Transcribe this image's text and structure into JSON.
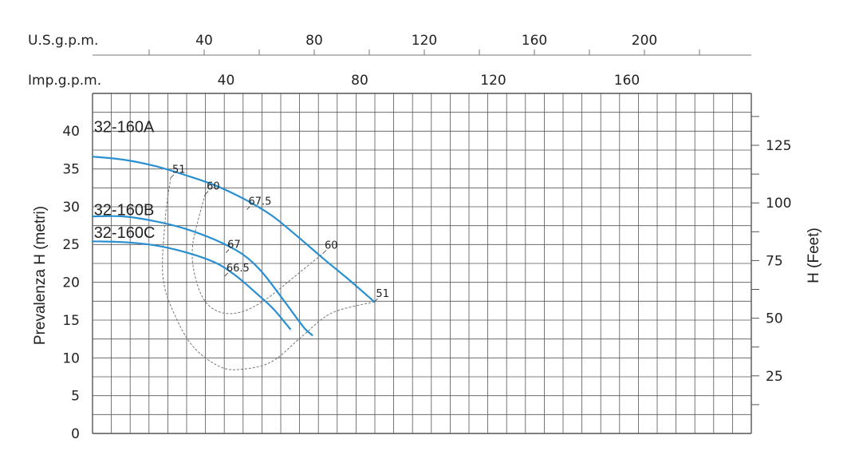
{
  "chart_data": {
    "type": "line",
    "x_axes": {
      "us_gpm": {
        "label": "U.S.g.p.m.",
        "ticks": [
          40,
          80,
          120,
          160,
          200
        ]
      },
      "imp_gpm": {
        "label": "Imp.g.p.m.",
        "ticks": [
          40,
          80,
          120,
          160
        ]
      }
    },
    "y_axes": {
      "left": {
        "label": "Prevalenza H (metri)",
        "ticks": [
          0,
          5,
          10,
          15,
          20,
          25,
          30,
          35,
          40
        ],
        "ylim": [
          0,
          45
        ]
      },
      "right": {
        "label": "H (Feet)",
        "ticks": [
          25,
          50,
          75,
          100,
          125
        ]
      }
    },
    "grid": true,
    "series": [
      {
        "name": "32-160A",
        "color": "#2a8fd0",
        "points": [
          [
            0.0,
            36.6
          ],
          [
            9.2,
            36.2
          ],
          [
            18.3,
            35.4
          ],
          [
            27.5,
            34.2
          ],
          [
            36.7,
            32.8
          ],
          [
            45.8,
            30.9
          ],
          [
            53.7,
            28.8
          ],
          [
            61.0,
            26.2
          ],
          [
            68.9,
            23.2
          ],
          [
            77.1,
            20.2
          ],
          [
            84.4,
            17.4
          ]
        ]
      },
      {
        "name": "32-160B",
        "color": "#2a8fd0",
        "points": [
          [
            0.0,
            28.7
          ],
          [
            9.2,
            28.7
          ],
          [
            18.3,
            28.1
          ],
          [
            27.5,
            27.1
          ],
          [
            36.7,
            25.6
          ],
          [
            44.9,
            23.7
          ],
          [
            51.0,
            21.2
          ],
          [
            57.9,
            17.2
          ],
          [
            63.3,
            14.0
          ],
          [
            65.8,
            13.0
          ]
        ]
      },
      {
        "name": "32-160C",
        "color": "#2a8fd0",
        "points": [
          [
            0.0,
            25.4
          ],
          [
            9.2,
            25.3
          ],
          [
            18.3,
            24.9
          ],
          [
            27.5,
            24.0
          ],
          [
            36.7,
            22.6
          ],
          [
            42.8,
            20.9
          ],
          [
            48.9,
            18.6
          ],
          [
            54.1,
            16.5
          ],
          [
            57.9,
            14.5
          ],
          [
            59.2,
            13.8
          ]
        ]
      }
    ],
    "efficiency_curves": [
      {
        "label_ends": "51",
        "points": [
          [
            23.4,
            33.8
          ],
          [
            21.8,
            28.5
          ],
          [
            21.1,
            20.6
          ],
          [
            25.0,
            15.3
          ],
          [
            30.5,
            11.3
          ],
          [
            38.3,
            8.8
          ],
          [
            44.8,
            8.5
          ],
          [
            53.7,
            9.5
          ],
          [
            62.9,
            12.9
          ],
          [
            71.5,
            15.9
          ],
          [
            84.4,
            17.4
          ]
        ]
      },
      {
        "label_ends": "60",
        "points": [
          [
            33.7,
            31.6
          ],
          [
            30.1,
            25.2
          ],
          [
            30.5,
            21.2
          ],
          [
            33.5,
            17.6
          ],
          [
            38.5,
            16.0
          ],
          [
            44.8,
            16.1
          ],
          [
            51.8,
            17.7
          ],
          [
            60.1,
            20.6
          ],
          [
            69.0,
            23.8
          ]
        ]
      }
    ],
    "annotations": [
      {
        "text": "51",
        "x": 23.4,
        "y": 33.8
      },
      {
        "text": "60",
        "x": 33.7,
        "y": 31.6
      },
      {
        "text": "67.5",
        "x": 46.2,
        "y": 29.6
      },
      {
        "text": "60",
        "x": 69.0,
        "y": 23.8
      },
      {
        "text": "51",
        "x": 84.4,
        "y": 17.4
      },
      {
        "text": "67",
        "x": 39.9,
        "y": 23.9
      },
      {
        "text": "66.5",
        "x": 39.6,
        "y": 20.8
      }
    ]
  }
}
